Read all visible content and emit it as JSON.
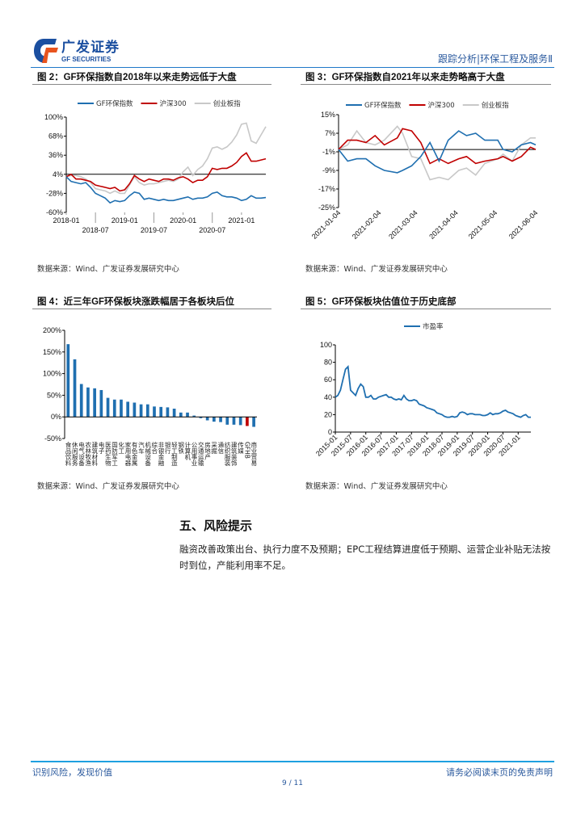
{
  "header": {
    "logo_cn": "广发证券",
    "logo_en": "GF SECURITIES",
    "right_text": "跟踪分析|环保工程及服务Ⅱ"
  },
  "colors": {
    "blue": "#1f6fb0",
    "red": "#c00000",
    "gray": "#c8c8c8",
    "header_blue": "#2b5a9e"
  },
  "figures": [
    {
      "title": "图 2：GF环保指数自2018年以来走势远低于大盘",
      "source": "数据来源：Wind、广发证券发展研究中心"
    },
    {
      "title": "图 3：GF环保指数自2021年以来走势略高于大盘",
      "source": "数据来源：Wind、广发证券发展研究中心"
    },
    {
      "title": "图 4：近三年GF环保板块涨跌幅居于各板块后位",
      "source": "数据来源：Wind、广发证券发展研究中心"
    },
    {
      "title": "图 5：GF环保板块估值位于历史底部",
      "source": "数据来源：Wind、广发证券发展研究中心"
    }
  ],
  "chart_data": [
    {
      "type": "line",
      "x_ticks": [
        "2018-01",
        "2018-07",
        "2019-01",
        "2019-07",
        "2020-01",
        "2020-07",
        "2021-01"
      ],
      "x": [
        "2018-01",
        "2018-02",
        "2018-03",
        "2018-04",
        "2018-05",
        "2018-06",
        "2018-07",
        "2018-08",
        "2018-09",
        "2018-10",
        "2018-11",
        "2018-12",
        "2019-01",
        "2019-02",
        "2019-03",
        "2019-04",
        "2019-05",
        "2019-06",
        "2019-07",
        "2019-08",
        "2019-09",
        "2019-10",
        "2019-11",
        "2019-12",
        "2020-01",
        "2020-02",
        "2020-03",
        "2020-04",
        "2020-05",
        "2020-06",
        "2020-07",
        "2020-08",
        "2020-09",
        "2020-10",
        "2020-11",
        "2020-12",
        "2021-01",
        "2021-02",
        "2021-03",
        "2021-04",
        "2021-05",
        "2021-06"
      ],
      "y_ticks": [
        "100%",
        "68%",
        "36%",
        "4%",
        "-28%",
        "-60%"
      ],
      "ylim": [
        -60,
        100
      ],
      "baseline": 4,
      "series": [
        {
          "name": "GF环保指数",
          "color": "#1f6fb0",
          "values": [
            0,
            -8,
            -10,
            -12,
            -10,
            -18,
            -28,
            -32,
            -36,
            -44,
            -40,
            -42,
            -40,
            -32,
            -26,
            -28,
            -38,
            -36,
            -38,
            -40,
            -38,
            -40,
            -40,
            -38,
            -36,
            -34,
            -38,
            -36,
            -36,
            -34,
            -28,
            -26,
            -32,
            -34,
            -34,
            -36,
            -40,
            -38,
            -32,
            -36,
            -36,
            -35
          ]
        },
        {
          "name": "沪深300",
          "color": "#c00000",
          "values": [
            0,
            4,
            -4,
            -4,
            -6,
            -8,
            -14,
            -16,
            -18,
            -20,
            -18,
            -24,
            -22,
            -12,
            2,
            -4,
            -8,
            -4,
            -6,
            -8,
            -4,
            -4,
            -6,
            -2,
            0,
            -4,
            -10,
            -6,
            -6,
            0,
            14,
            12,
            14,
            14,
            18,
            24,
            34,
            40,
            26,
            26,
            28,
            30
          ]
        },
        {
          "name": "创业板指",
          "color": "#c8c8c8",
          "values": [
            0,
            2,
            2,
            0,
            -4,
            -10,
            -20,
            -22,
            -24,
            -28,
            -24,
            -28,
            -28,
            -14,
            0,
            -10,
            -14,
            -12,
            -12,
            -10,
            -8,
            -6,
            -8,
            -4,
            8,
            16,
            2,
            12,
            18,
            30,
            48,
            50,
            46,
            50,
            58,
            70,
            88,
            90,
            60,
            56,
            70,
            84
          ]
        }
      ],
      "legend": "top"
    },
    {
      "type": "line",
      "x_ticks": [
        "2021-01-04",
        "2021-02-04",
        "2021-03-04",
        "2021-04-04",
        "2021-05-04",
        "2021-06-04"
      ],
      "x": [
        "2021-01-04",
        "2021-01-11",
        "2021-01-18",
        "2021-01-25",
        "2021-02-01",
        "2021-02-08",
        "2021-02-18",
        "2021-02-22",
        "2021-03-01",
        "2021-03-08",
        "2021-03-15",
        "2021-03-22",
        "2021-03-29",
        "2021-04-06",
        "2021-04-12",
        "2021-04-19",
        "2021-04-26",
        "2021-05-06",
        "2021-05-10",
        "2021-05-17",
        "2021-05-24",
        "2021-05-31",
        "2021-06-04"
      ],
      "y_ticks": [
        "15%",
        "7%",
        "-1%",
        "-9%",
        "-17%",
        "-25%"
      ],
      "ylim": [
        -25,
        15
      ],
      "baseline": 0,
      "series": [
        {
          "name": "GF环保指数",
          "color": "#1f6fb0",
          "values": [
            0,
            -5,
            -4,
            -4,
            -7,
            -9,
            -10,
            -9,
            -7,
            -3,
            3,
            -5,
            4,
            8,
            6,
            7,
            4,
            4,
            0,
            -1,
            2,
            3,
            2
          ]
        },
        {
          "name": "沪深300",
          "color": "#c00000",
          "values": [
            0,
            4,
            4,
            3,
            6,
            2,
            5,
            9,
            8,
            3,
            -6,
            -4,
            -6,
            -4,
            -3,
            -6,
            -5,
            -4,
            -3,
            -5,
            -3,
            1,
            0
          ]
        },
        {
          "name": "创业板指",
          "color": "#c8c8c8",
          "values": [
            0,
            2,
            8,
            3,
            2,
            4,
            10,
            7,
            -3,
            -4,
            -13,
            -12,
            -13,
            -9,
            -8,
            -11,
            -6,
            -4,
            -2,
            -5,
            2,
            5,
            5
          ]
        }
      ],
      "legend": "top"
    },
    {
      "type": "bar",
      "y_ticks": [
        "200%",
        "150%",
        "100%",
        "50%",
        "0%",
        "-50%"
      ],
      "ylim": [
        -50,
        200
      ],
      "categories": [
        "食品饮料",
        "休闲服务",
        "电气设备",
        "农林牧渔",
        "建筑材料",
        "电子",
        "医药生物",
        "国防军工",
        "化工",
        "家用电器",
        "有色金属",
        "汽车",
        "机械设备",
        "综合",
        "非银金融",
        "银行",
        "轻工制造",
        "钢铁",
        "计算机",
        "公用事业",
        "交通运输",
        "房地产",
        "采掘",
        "通信",
        "纺织服装",
        "建筑装饰",
        "传媒",
        "GFHB",
        "商业贸易"
      ],
      "values": [
        168,
        133,
        76,
        68,
        66,
        62,
        44,
        40,
        40,
        35,
        33,
        29,
        29,
        24,
        23,
        22,
        19,
        10,
        10,
        3,
        -3,
        -8,
        -11,
        -12,
        -18,
        -18,
        -19,
        -21,
        -23
      ],
      "highlight": "GFHB",
      "bar_color": "#1f6fb0",
      "highlight_color": "#c00000"
    },
    {
      "type": "line",
      "x_ticks": [
        "2015-01",
        "2015-07",
        "2016-01",
        "2016-07",
        "2017-01",
        "2017-07",
        "2018-01",
        "2018-07",
        "2019-01",
        "2019-07",
        "2020-01",
        "2020-07",
        "2021-01"
      ],
      "x_start": "2015-01",
      "x_end": "2021-06",
      "y_ticks": [
        "100",
        "80",
        "60",
        "40",
        "20",
        "0"
      ],
      "ylim": [
        0,
        100
      ],
      "series": [
        {
          "name": "市盈率",
          "color": "#1f6fb0",
          "values": [
            40,
            42,
            48,
            60,
            72,
            75,
            48,
            45,
            42,
            50,
            55,
            52,
            40,
            40,
            42,
            38,
            38,
            40,
            41,
            42,
            43,
            40,
            40,
            38,
            37,
            38,
            37,
            42,
            38,
            36,
            36,
            37,
            36,
            32,
            31,
            30,
            28,
            27,
            26,
            25,
            22,
            21,
            20,
            18,
            17,
            17,
            18,
            17,
            18,
            22,
            23,
            22,
            20,
            21,
            21,
            20,
            20,
            20,
            19,
            19,
            20,
            22,
            20,
            21,
            21,
            22,
            24,
            25,
            23,
            22,
            21,
            19,
            18,
            17,
            19,
            20,
            17,
            17
          ]
        }
      ],
      "legend": "top"
    }
  ],
  "section": {
    "title": "五、风险提示",
    "body": "融资改善政策出台、执行力度不及预期；EPC工程结算进度低于预期、运营企业补贴无法按时到位，产能利用率不足。"
  },
  "footer": {
    "left": "识别风险，发现价值",
    "right": "请务必阅读末页的免责声明",
    "page": "9 / 11"
  }
}
